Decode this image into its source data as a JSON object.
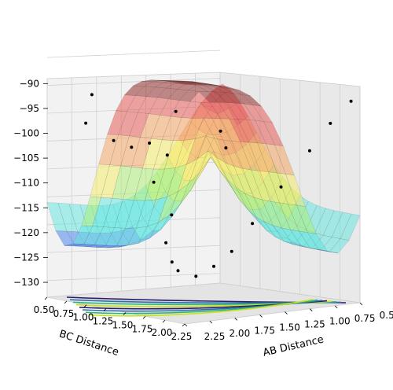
{
  "chart_data": {
    "type": "surface3d",
    "title": "",
    "xlabel": "AB Distance",
    "ylabel": "BC Distance",
    "zlabel": "",
    "xlim": [
      0.5,
      2.25
    ],
    "ylim": [
      0.5,
      2.25
    ],
    "zlim": [
      -133,
      -89
    ],
    "x_ticks": [
      "0.50",
      "0.75",
      "1.00",
      "1.25",
      "1.50",
      "1.75",
      "2.00",
      "2.25"
    ],
    "y_ticks": [
      "0.50",
      "0.75",
      "1.00",
      "1.25",
      "1.50",
      "1.75",
      "2.00",
      "2.25"
    ],
    "z_ticks": [
      {
        "value": -90,
        "label": "−90"
      },
      {
        "value": -95,
        "label": "−95"
      },
      {
        "value": -100,
        "label": "−100"
      },
      {
        "value": -105,
        "label": "−105"
      },
      {
        "value": -110,
        "label": "−110"
      },
      {
        "value": -115,
        "label": "−115"
      },
      {
        "value": -120,
        "label": "−120"
      },
      {
        "value": -125,
        "label": "−125"
      },
      {
        "value": -130,
        "label": "−130"
      }
    ],
    "grid": true,
    "colormap": "jet",
    "colormap_colors": [
      "#2c2cd8",
      "#3d7cf0",
      "#5ee6e0",
      "#aaf070",
      "#f5ec60",
      "#f5a05a",
      "#e8504c",
      "#8b1a1a"
    ],
    "contour_colormap": [
      "#2c1a6b",
      "#2e6fa8",
      "#2fb57e",
      "#c8e020"
    ],
    "surface_alpha": 0.5,
    "series": [
      {
        "kind": "surface",
        "description_values": {
          "plateau_energy": -90,
          "valley_minimum": -131,
          "valley_axis_ab": 1.0,
          "valley_axis_bc": 0.75
        }
      },
      {
        "kind": "scatter",
        "point_color": "#000000",
        "sampled_points": [
          {
            "ab": 2.0,
            "bc": 0.75,
            "e": -96
          },
          {
            "ab": 2.1,
            "bc": 0.8,
            "e": -101
          },
          {
            "ab": 1.9,
            "bc": 0.9,
            "e": -104
          },
          {
            "ab": 1.8,
            "bc": 1.0,
            "e": -105
          },
          {
            "ab": 1.7,
            "bc": 1.1,
            "e": -104
          },
          {
            "ab": 1.6,
            "bc": 1.2,
            "e": -106
          },
          {
            "ab": 1.5,
            "bc": 0.9,
            "e": -112
          },
          {
            "ab": 1.4,
            "bc": 1.0,
            "e": -118
          },
          {
            "ab": 1.3,
            "bc": 0.8,
            "e": -124
          },
          {
            "ab": 1.2,
            "bc": 0.75,
            "e": -128
          },
          {
            "ab": 1.1,
            "bc": 0.7,
            "e": -130
          },
          {
            "ab": 1.0,
            "bc": 0.8,
            "e": -131
          },
          {
            "ab": 0.9,
            "bc": 0.9,
            "e": -129
          },
          {
            "ab": 0.8,
            "bc": 1.0,
            "e": -126
          },
          {
            "ab": 0.75,
            "bc": 1.2,
            "e": -120
          },
          {
            "ab": 0.7,
            "bc": 1.5,
            "e": -112
          },
          {
            "ab": 0.65,
            "bc": 1.8,
            "e": -104
          },
          {
            "ab": 0.6,
            "bc": 2.0,
            "e": -98
          },
          {
            "ab": 0.55,
            "bc": 2.2,
            "e": -93
          },
          {
            "ab": 1.25,
            "bc": 1.5,
            "e": -104
          },
          {
            "ab": 1.5,
            "bc": 1.75,
            "e": -100
          },
          {
            "ab": 1.75,
            "bc": 1.5,
            "e": -97
          }
        ]
      },
      {
        "kind": "contour",
        "plane": "floor"
      }
    ]
  }
}
